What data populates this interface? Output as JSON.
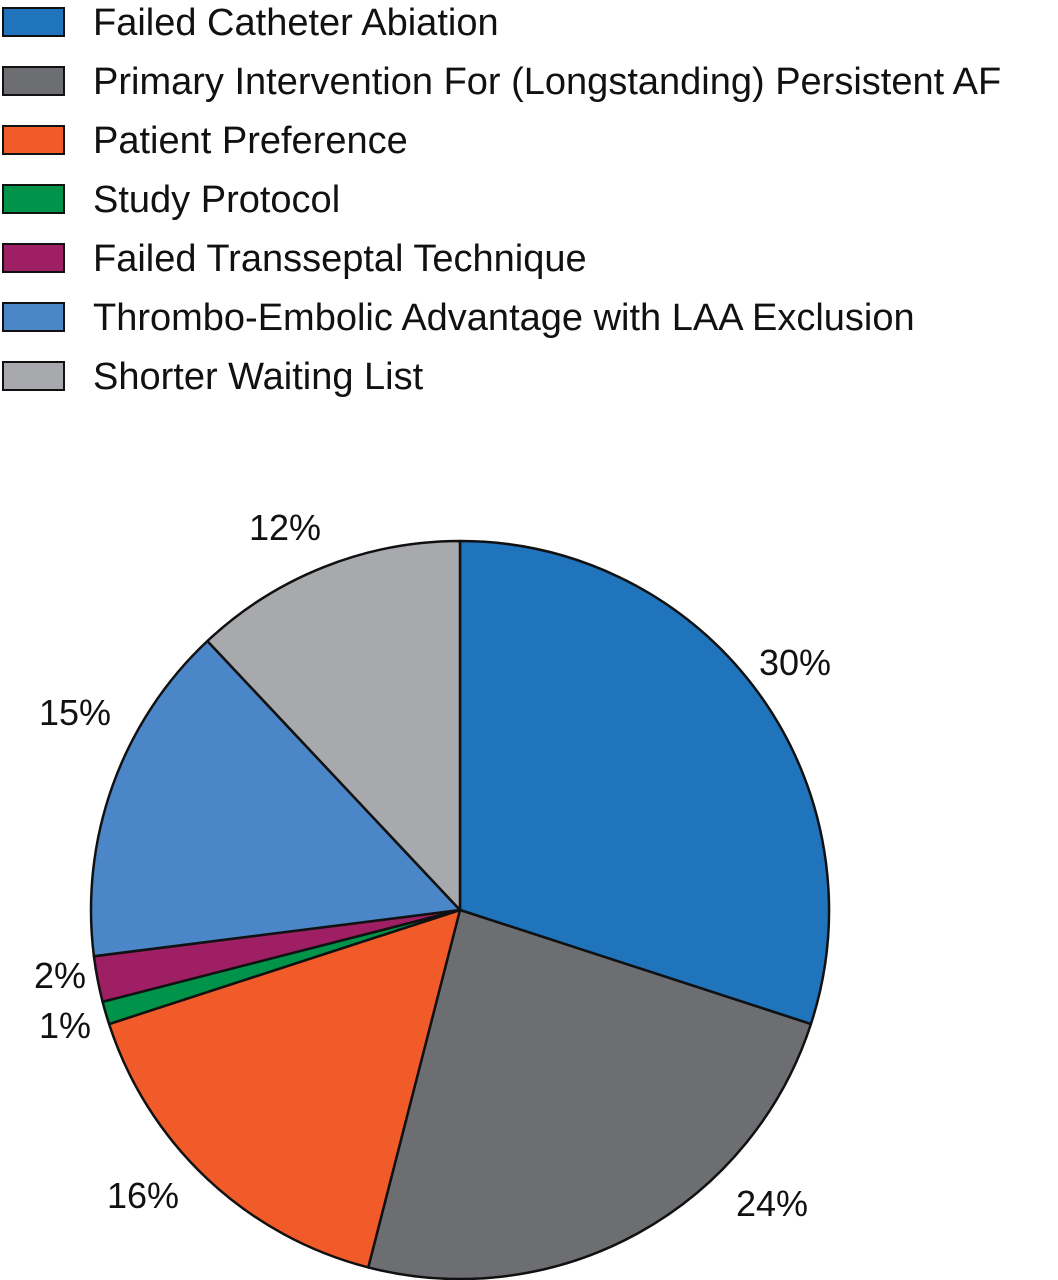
{
  "chart_data": {
    "type": "pie",
    "legend_placement": "top-left",
    "start": "top, clockwise",
    "slices": [
      {
        "name": "Failed Catheter Abiation",
        "value": 30,
        "label": "30%",
        "color": "#1f74bc"
      },
      {
        "name": "Primary Intervention For (Longstanding) Persistent AF",
        "value": 24,
        "label": "24%",
        "color": "#6d6e71"
      },
      {
        "name": "Patient Preference",
        "value": 16,
        "label": "16%",
        "color": "#f15a29"
      },
      {
        "name": "Study Protocol",
        "value": 1,
        "label": "1%",
        "color": "#00944a"
      },
      {
        "name": "Failed Transseptal Technique",
        "value": 2,
        "label": "2%",
        "color": "#9e1f63"
      },
      {
        "name": "Thrombo-Embolic Advantage with LAA Exclusion",
        "value": 15,
        "label": "15%",
        "color": "#4a86c8"
      },
      {
        "name": "Shorter Waiting List",
        "value": 12,
        "label": "12%",
        "color": "#a7a9ac"
      }
    ]
  }
}
